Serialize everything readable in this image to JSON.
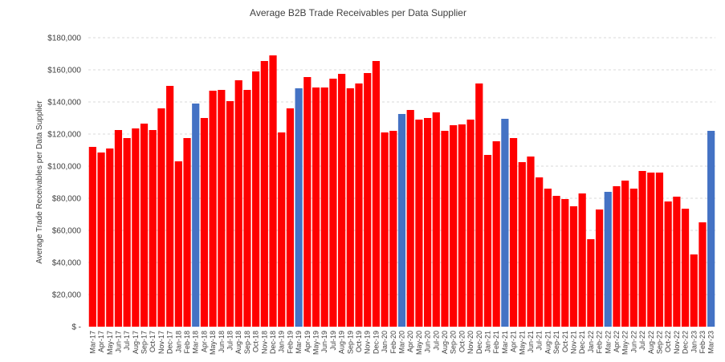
{
  "chart_data": {
    "type": "bar",
    "title": "Average B2B Trade Receivables per Data Supplier",
    "xlabel": "",
    "ylabel": "Average Trade Receivables per Data Supplier",
    "ylim": [
      0,
      180000
    ],
    "yticks": [
      0,
      20000,
      40000,
      60000,
      80000,
      100000,
      120000,
      140000,
      160000,
      180000
    ],
    "ytick_labels": [
      "$ -",
      "$20,000",
      "$40,000",
      "$60,000",
      "$80,000",
      "$100,000",
      "$120,000",
      "$140,000",
      "$160,000",
      "$180,000"
    ],
    "grid": true,
    "legend": "none",
    "colors": {
      "default": "#ff0000",
      "highlight": "#4472c4"
    },
    "categories": [
      "Mar-17",
      "Apr-17",
      "May-17",
      "Jun-17",
      "Jul-17",
      "Aug-17",
      "Sep-17",
      "Oct-17",
      "Nov-17",
      "Dec-17",
      "Jan-18",
      "Feb-18",
      "Mar-18",
      "Apr-18",
      "May-18",
      "Jun-18",
      "Jul-18",
      "Aug-18",
      "Sep-18",
      "Oct-18",
      "Nov-18",
      "Dec-18",
      "Jan-19",
      "Feb-19",
      "Mar-19",
      "Apr-19",
      "May-19",
      "Jun-19",
      "Jul-19",
      "Aug-19",
      "Sep-19",
      "Oct-19",
      "Nov-19",
      "Dec-19",
      "Jan-20",
      "Feb-20",
      "Mar-20",
      "Apr-20",
      "May-20",
      "Jun-20",
      "Jul-20",
      "Aug-20",
      "Sep-20",
      "Oct-20",
      "Nov-20",
      "Dec-20",
      "Jan-21",
      "Feb-21",
      "Mar-21",
      "Apr-21",
      "May-21",
      "Jun-21",
      "Jul-21",
      "Aug-21",
      "Sep-21",
      "Oct-21",
      "Nov-21",
      "Dec-21",
      "Jan-22",
      "Feb-22",
      "Mar-22",
      "Apr-22",
      "May-22",
      "Jun-22",
      "Jul-22",
      "Aug-22",
      "Sep-22",
      "Oct-22",
      "Nov-22",
      "Dec-22",
      "Jan-23",
      "Feb-23",
      "Mar-23"
    ],
    "values": [
      112000,
      108500,
      111000,
      122500,
      117500,
      123500,
      126500,
      122500,
      136000,
      150000,
      103000,
      117500,
      139000,
      130000,
      147000,
      147500,
      140500,
      153500,
      147500,
      159000,
      165500,
      169000,
      121000,
      136000,
      148500,
      155500,
      149000,
      149000,
      154500,
      157500,
      148500,
      151500,
      158000,
      165500,
      121000,
      122000,
      132500,
      135000,
      129000,
      130000,
      133500,
      122000,
      125500,
      126000,
      129000,
      151500,
      107000,
      115500,
      129500,
      117500,
      102500,
      106000,
      93000,
      86000,
      81500,
      79500,
      75000,
      83000,
      54500,
      73000,
      84000,
      87500,
      91000,
      86000,
      97000,
      96000,
      96000,
      78000,
      81000,
      73500,
      45000,
      65000,
      122000
    ],
    "highlight_categories": [
      "Mar-18",
      "Mar-19",
      "Mar-20",
      "Mar-21",
      "Mar-22",
      "Mar-23"
    ]
  }
}
